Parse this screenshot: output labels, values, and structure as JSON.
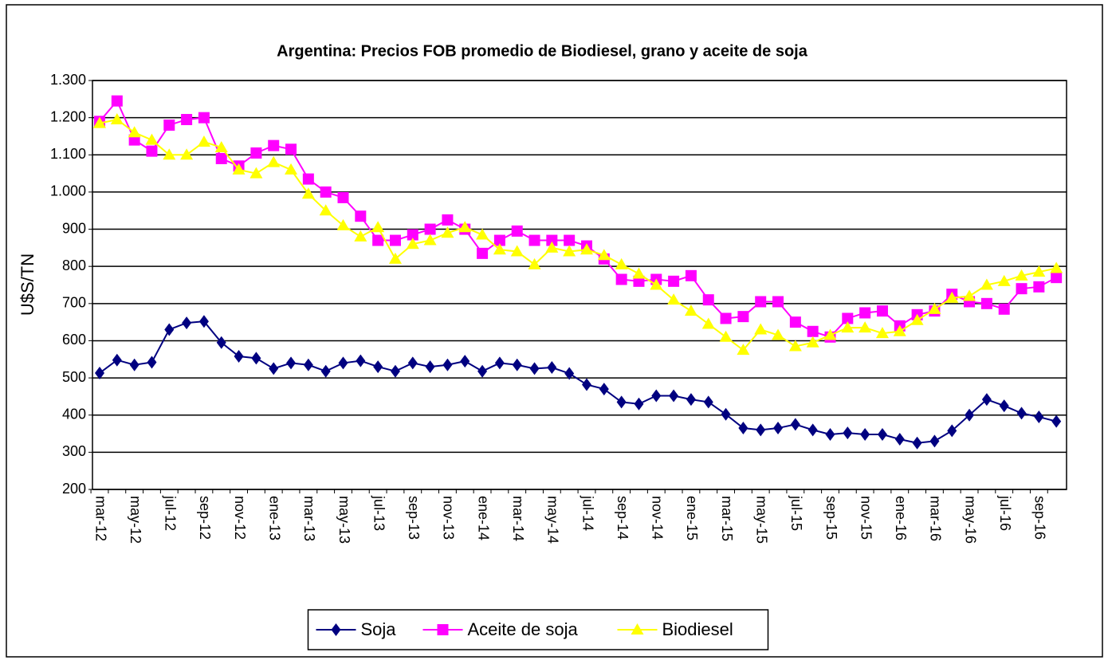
{
  "chart_data": {
    "type": "line",
    "title": "Argentina: Precios FOB promedio de Biodiesel, grano y aceite de soja",
    "y_label": "U$S/TN",
    "categories": [
      "mar-12",
      null,
      "may-12",
      null,
      "jul-12",
      null,
      "sep-12",
      null,
      "nov-12",
      null,
      "ene-13",
      null,
      "mar-13",
      null,
      "may-13",
      null,
      "jul-13",
      null,
      "sep-13",
      null,
      "nov-13",
      null,
      "ene-14",
      null,
      "mar-14",
      null,
      "may-14",
      null,
      "jul-14",
      null,
      "sep-14",
      null,
      "nov-14",
      null,
      "ene-15",
      null,
      "mar-15",
      null,
      "may-15",
      null,
      "jul-15",
      null,
      "sep-15",
      null,
      "nov-15",
      null,
      "ene-16",
      null,
      "mar-16",
      null,
      "may-16",
      null,
      "jul-16",
      null,
      "sep-16",
      null
    ],
    "series": [
      {
        "name": "Soja",
        "color": "#000080",
        "marker": "diamond",
        "values": [
          513,
          548,
          535,
          542,
          630,
          648,
          652,
          595,
          558,
          553,
          525,
          540,
          535,
          518,
          540,
          546,
          530,
          518,
          540,
          530,
          535,
          545,
          518,
          540,
          535,
          525,
          528,
          512,
          482,
          470,
          435,
          430,
          452,
          452,
          442,
          435,
          402,
          365,
          360,
          365,
          375,
          360,
          348,
          352,
          348,
          348,
          335,
          325,
          330,
          358,
          400,
          442,
          425,
          405,
          395,
          383
        ]
      },
      {
        "name": "Aceite de soja",
        "color": "#ff00ff",
        "marker": "square",
        "values": [
          1190,
          1245,
          1140,
          1110,
          1180,
          1195,
          1200,
          1090,
          1070,
          1105,
          1125,
          1115,
          1035,
          1000,
          985,
          935,
          870,
          870,
          885,
          900,
          925,
          900,
          835,
          870,
          895,
          870,
          870,
          870,
          855,
          820,
          765,
          760,
          765,
          760,
          775,
          710,
          660,
          665,
          705,
          705,
          650,
          625,
          610,
          660,
          675,
          680,
          640,
          670,
          680,
          725,
          705,
          700,
          685,
          740,
          745,
          770
        ]
      },
      {
        "name": "Biodiesel",
        "color": "#ffff00",
        "marker": "triangle",
        "values": [
          1185,
          1195,
          1160,
          1140,
          1100,
          1100,
          1135,
          1120,
          1060,
          1050,
          1080,
          1060,
          995,
          950,
          910,
          880,
          905,
          820,
          860,
          870,
          890,
          905,
          885,
          845,
          840,
          805,
          850,
          840,
          845,
          830,
          805,
          780,
          750,
          710,
          680,
          645,
          610,
          575,
          630,
          615,
          585,
          595,
          615,
          635,
          635,
          620,
          625,
          655,
          685,
          715,
          720,
          750,
          760,
          775,
          785,
          795
        ]
      }
    ],
    "ylim": [
      200,
      1300
    ],
    "yticks": [
      200,
      300,
      400,
      500,
      600,
      700,
      800,
      900,
      {
        "value": 1000,
        "label": "1.000"
      },
      {
        "value": 1100,
        "label": "1.100"
      },
      {
        "value": 1200,
        "label": "1.200"
      },
      {
        "value": 1300,
        "label": "1.300"
      }
    ],
    "grid": true,
    "legend": "bottom"
  }
}
